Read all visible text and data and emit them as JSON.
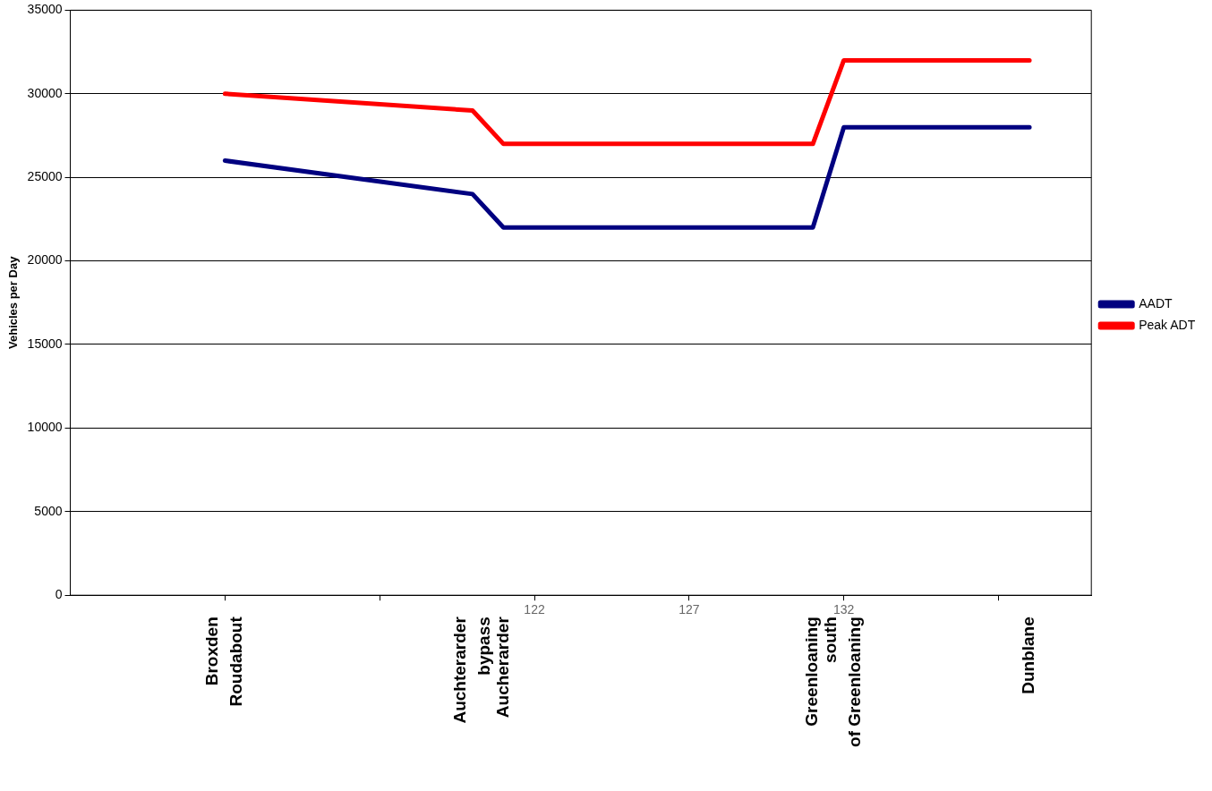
{
  "chart_data": {
    "type": "line",
    "ylabel": "Vehicles per Day",
    "xlim": [
      107,
      140
    ],
    "xticks": [
      {
        "value": 112,
        "label": null
      },
      {
        "value": 117,
        "label": null
      },
      122,
      127,
      132,
      {
        "value": 137,
        "label": null
      }
    ],
    "ylim": [
      0,
      35000
    ],
    "yticks": [
      0,
      5000,
      10000,
      15000,
      20000,
      25000,
      30000,
      35000
    ],
    "grid": "y",
    "legend": "right",
    "marker": "none",
    "line_style": "solid",
    "series": [
      {
        "name": "AADT",
        "color": "#000080",
        "x": [
          112,
          120,
          121,
          131,
          132,
          138
        ],
        "values": [
          26000,
          24000,
          22000,
          22000,
          28000,
          28000
        ]
      },
      {
        "name": "Peak ADT",
        "color": "#ff0000",
        "x": [
          112,
          120,
          121,
          131,
          132,
          138
        ],
        "values": [
          30000,
          29000,
          27000,
          27000,
          32000,
          32000
        ]
      }
    ],
    "annotations": [
      "Broxden\nRoudabout",
      "Auchterarder\nbypass",
      "Aucherarder",
      "Greenloaning",
      "south\nof Greenloaning",
      "Dunblane"
    ]
  }
}
